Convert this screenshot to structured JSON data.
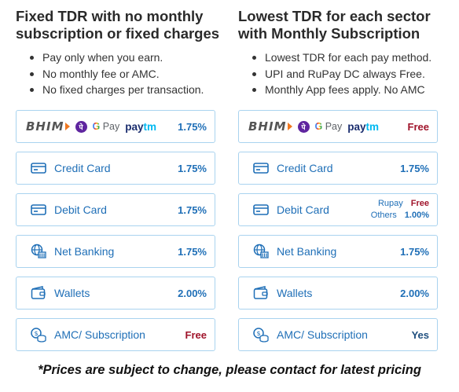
{
  "left": {
    "heading": [
      "Fixed TDR with no monthly",
      "subscription or fixed charges"
    ],
    "bullets": [
      "Pay only when you earn.",
      "No monthly fee or AMC.",
      "No fixed charges per transaction."
    ],
    "upi_price": "1.75%",
    "rows": [
      {
        "label": "Credit Card",
        "price": "1.75%"
      },
      {
        "label": "Debit Card",
        "price": "1.75%"
      },
      {
        "label": "Net Banking",
        "price": "1.75%"
      },
      {
        "label": "Wallets",
        "price": "2.00%"
      },
      {
        "label": "AMC/ Subscription",
        "price": "Free"
      }
    ]
  },
  "right": {
    "heading": [
      "Lowest TDR for each sector",
      "with Monthly Subscription"
    ],
    "bullets": [
      "Lowest TDR for each pay method.",
      "UPI and RuPay DC always Free.",
      "Monthly App fees apply. No AMC"
    ],
    "upi_price": "Free",
    "rows": [
      {
        "label": "Credit Card",
        "price": "1.75%"
      },
      {
        "label": "Debit Card",
        "sub": [
          {
            "k": "Rupay",
            "v": "Free"
          },
          {
            "k": "Others",
            "v": "1.00%"
          }
        ]
      },
      {
        "label": "Net Banking",
        "price": "1.75%"
      },
      {
        "label": "Wallets",
        "price": "2.00%"
      },
      {
        "label": "AMC/ Subscription",
        "price": "Yes"
      }
    ]
  },
  "logos": {
    "bhim": "BHIM",
    "phonepe": "पे",
    "gpay_g": "G",
    "gpay_text": "Pay",
    "paytm_pay": "pay",
    "paytm_tm": "tm"
  },
  "icons": [
    "upi-logos",
    "credit-card-icon",
    "debit-card-icon",
    "net-banking-icon",
    "wallet-icon",
    "amc-subscription-icon"
  ],
  "colors": {
    "border": "#a9d3ef",
    "label": "#1f6fb7",
    "free": "#a0142b"
  },
  "footer": "*Prices are subject to change, please contact for latest pricing"
}
